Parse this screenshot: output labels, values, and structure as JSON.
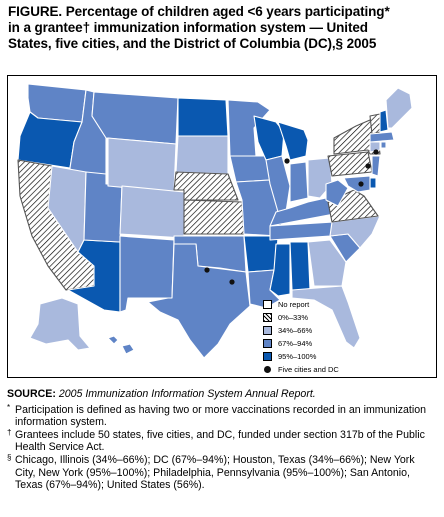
{
  "title": {
    "line1": "FIGURE. Percentage of children aged <6 years participating*",
    "line2": "in a grantee† immunization information system — United",
    "line3": "States, five cities, and the District of Columbia (DC),§ 2005"
  },
  "legend": {
    "items": [
      {
        "key": "none",
        "label": "No report",
        "color": "#ffffff"
      },
      {
        "key": "low",
        "label": "0%–33%",
        "color": "hatch"
      },
      {
        "key": "mid",
        "label": "34%–66%",
        "color": "#a9b9dd"
      },
      {
        "key": "high",
        "label": "67%–94%",
        "color": "#5f84c6"
      },
      {
        "key": "top",
        "label": "95%–100%",
        "color": "#0a58b0"
      }
    ],
    "cities_label": "Five cities and DC"
  },
  "colors": {
    "none": "#ffffff",
    "low": "#ffffff",
    "mid": "#a9b9dd",
    "high": "#5f84c6",
    "top": "#0a58b0",
    "border": "#ffffff",
    "dot": "#111111"
  },
  "states": {
    "WA": "high",
    "OR": "top",
    "CA": "low",
    "ID": "high",
    "NV": "mid",
    "AZ": "top",
    "UT": "high",
    "MT": "high",
    "WY": "mid",
    "CO": "mid",
    "NM": "high",
    "ND": "top",
    "SD": "mid",
    "NE": "low",
    "KS": "low",
    "OK": "high",
    "TX": "high",
    "MN": "high",
    "IA": "high",
    "MO": "high",
    "AR": "top",
    "LA": "high",
    "WI": "top",
    "IL": "high",
    "MS": "top",
    "AL": "top",
    "TN": "high",
    "KY": "high",
    "MI": "top",
    "IN": "high",
    "OH": "mid",
    "GA": "mid",
    "FL": "mid",
    "SC": "high",
    "NC": "mid",
    "VA": "low",
    "WV": "high",
    "PA": "low",
    "NY": "low",
    "VT": "low",
    "NH": "top",
    "ME": "mid",
    "MA": "high",
    "CT": "mid",
    "RI": "high",
    "NJ": "high",
    "DE": "top",
    "MD": "high",
    "AK": "mid",
    "HI": "high"
  },
  "footnotes": {
    "source_label": "SOURCE:",
    "source_text": "2005 Immunization Information System Annual Report.",
    "note1_symbol": "*",
    "note1": "Participation is defined as having two or more vaccinations recorded in an immunization information system.",
    "note2_symbol": "†",
    "note2": "Grantees include 50 states, five cities, and DC, funded under section 317b of the Public Health Service Act.",
    "note3_symbol": "§",
    "note3": "Chicago, Illinois (34%–66%); DC (67%–94%); Houston, Texas (34%–66%); New York City, New York (95%–100%); Philadelphia, Pennsylvania (95%–100%); San Antonio, Texas (67%–94%); United States (56%)."
  }
}
